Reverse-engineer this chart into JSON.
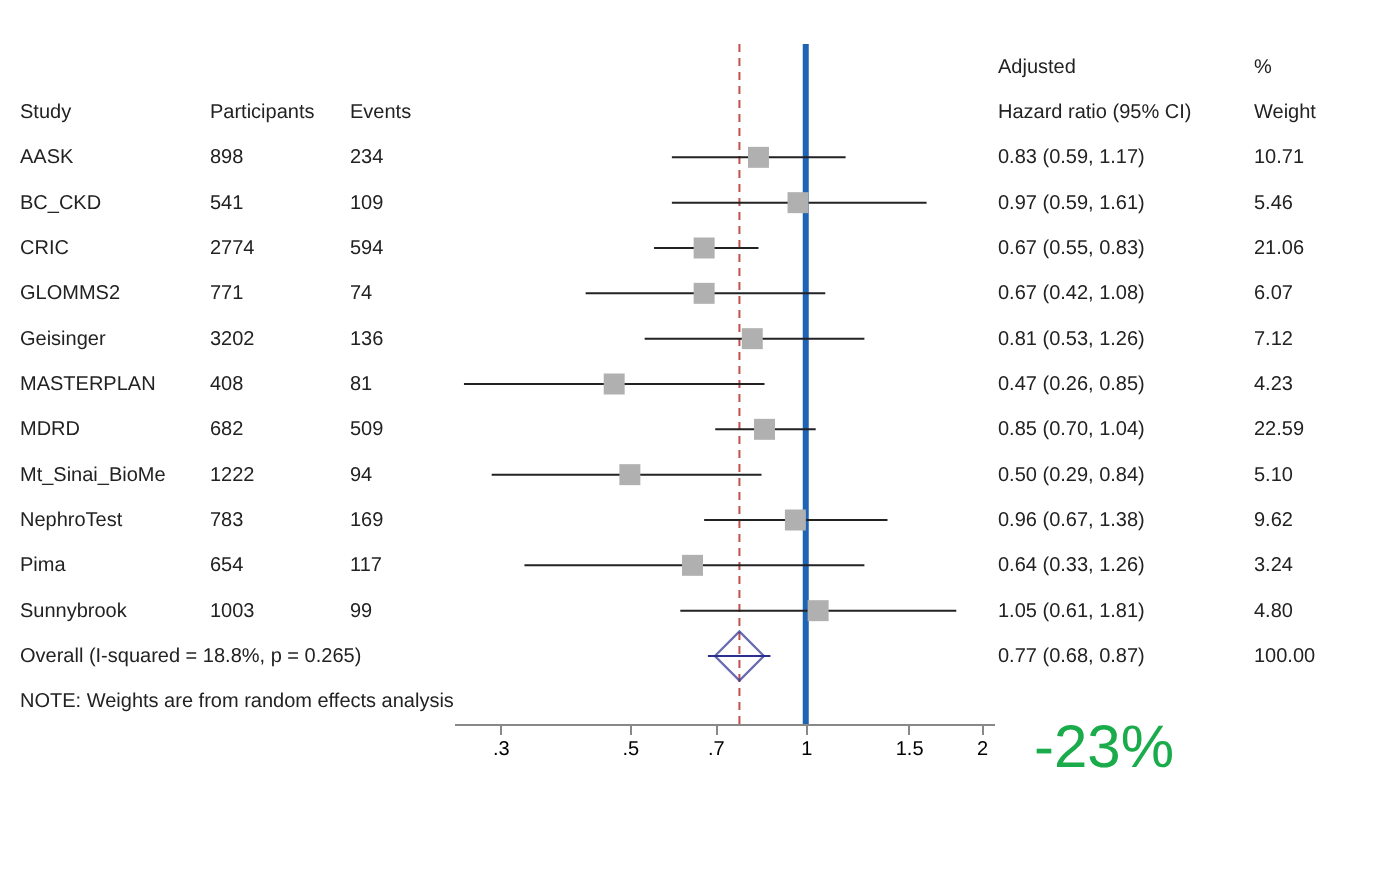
{
  "chart_data": {
    "type": "scatter",
    "orientation": "horizontal",
    "categories": [
      "AASK",
      "BC_CKD",
      "CRIC",
      "GLOMMS2",
      "Geisinger",
      "MASTERPLAN",
      "MDRD",
      "Mt_Sinai_BioMe",
      "NephroTest",
      "Pima",
      "Sunnybrook",
      "Overall  (I-squared = 18.8%, p = 0.265)"
    ],
    "series": [
      {
        "marker": "square",
        "color": "#b0b0b0",
        "values": [
          0.83,
          0.97,
          0.67,
          0.67,
          0.81,
          0.47,
          0.85,
          0.5,
          0.96,
          0.64,
          1.05,
          null
        ],
        "errors": [
          [
            0.59,
            1.17
          ],
          [
            0.59,
            1.61
          ],
          [
            0.55,
            0.83
          ],
          [
            0.42,
            1.08
          ],
          [
            0.53,
            1.26
          ],
          [
            0.26,
            0.85
          ],
          [
            0.7,
            1.04
          ],
          [
            0.29,
            0.84
          ],
          [
            0.67,
            1.38
          ],
          [
            0.33,
            1.26
          ],
          [
            0.61,
            1.81
          ],
          null
        ],
        "value_labels": [
          "0.83 (0.59, 1.17)",
          "0.97 (0.59, 1.61)",
          "0.67 (0.55, 0.83)",
          "0.67 (0.42, 1.08)",
          "0.81 (0.53, 1.26)",
          "0.47 (0.26, 0.85)",
          "0.85 (0.70, 1.04)",
          "0.50 (0.29, 0.84)",
          "0.96 (0.67, 1.38)",
          "0.64 (0.33, 1.26)",
          "1.05 (0.61, 1.81)",
          null
        ]
      },
      {
        "marker": "diamond",
        "color": "#2b2f8f",
        "values": [
          null,
          null,
          null,
          null,
          null,
          null,
          null,
          null,
          null,
          null,
          null,
          0.77
        ],
        "errors": [
          null,
          null,
          null,
          null,
          null,
          null,
          null,
          null,
          null,
          null,
          null,
          [
            0.68,
            0.87
          ]
        ]
      }
    ],
    "log": "x",
    "xlim": [
      0.25,
      2.1
    ],
    "xticks": [
      {
        "value": 0.3,
        "label": ".3"
      },
      {
        "value": 0.5,
        "label": ".5"
      },
      {
        "value": 0.7,
        "label": ".7"
      },
      1,
      1.5,
      2
    ],
    "ref_lines": [
      {
        "axis": "x",
        "value": 1,
        "color": "#1f63b5",
        "line_style": "solid"
      },
      {
        "axis": "x",
        "value": 0.77,
        "color": "#c0504d",
        "line_style": "dashed"
      }
    ],
    "annotations": [
      "Study",
      "Participants",
      "Events",
      "Adjusted",
      "Hazard ratio (95% CI)",
      "%",
      "Weight",
      "898",
      "541",
      "2774",
      "771",
      "3202",
      "408",
      "682",
      "1222",
      "783",
      "654",
      "1003",
      "234",
      "109",
      "594",
      "74",
      "136",
      "81",
      "509",
      "94",
      "169",
      "117",
      "99",
      "10.71",
      "5.46",
      "21.06",
      "6.07",
      "7.12",
      "4.23",
      "22.59",
      "5.10",
      "9.62",
      "3.24",
      "4.80",
      "100.00",
      "NOTE: Weights are from random effects analysis",
      "-23%",
      "0.77 (0.68, 0.87)"
    ],
    "grid": false
  }
}
